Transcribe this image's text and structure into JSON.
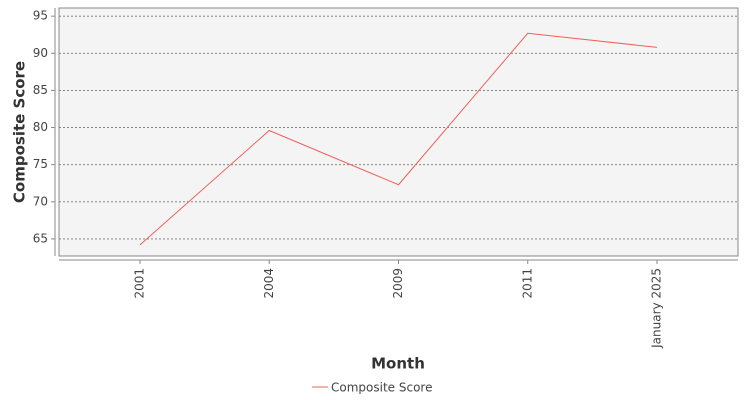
{
  "chart_data": {
    "type": "line",
    "x_label": "Month",
    "y_label": "Composite Score",
    "categories": [
      "2001",
      "2004",
      "2009",
      "2011",
      "January 2025"
    ],
    "series": [
      {
        "name": "Composite Score",
        "color": "#f0605a",
        "values": [
          64.2,
          79.6,
          72.3,
          92.7,
          90.8
        ]
      }
    ],
    "ylim": [
      62.7,
      96.1
    ],
    "yticks": [
      65,
      70,
      75,
      80,
      85,
      90,
      95
    ],
    "grid": true,
    "legend": "bottom"
  }
}
